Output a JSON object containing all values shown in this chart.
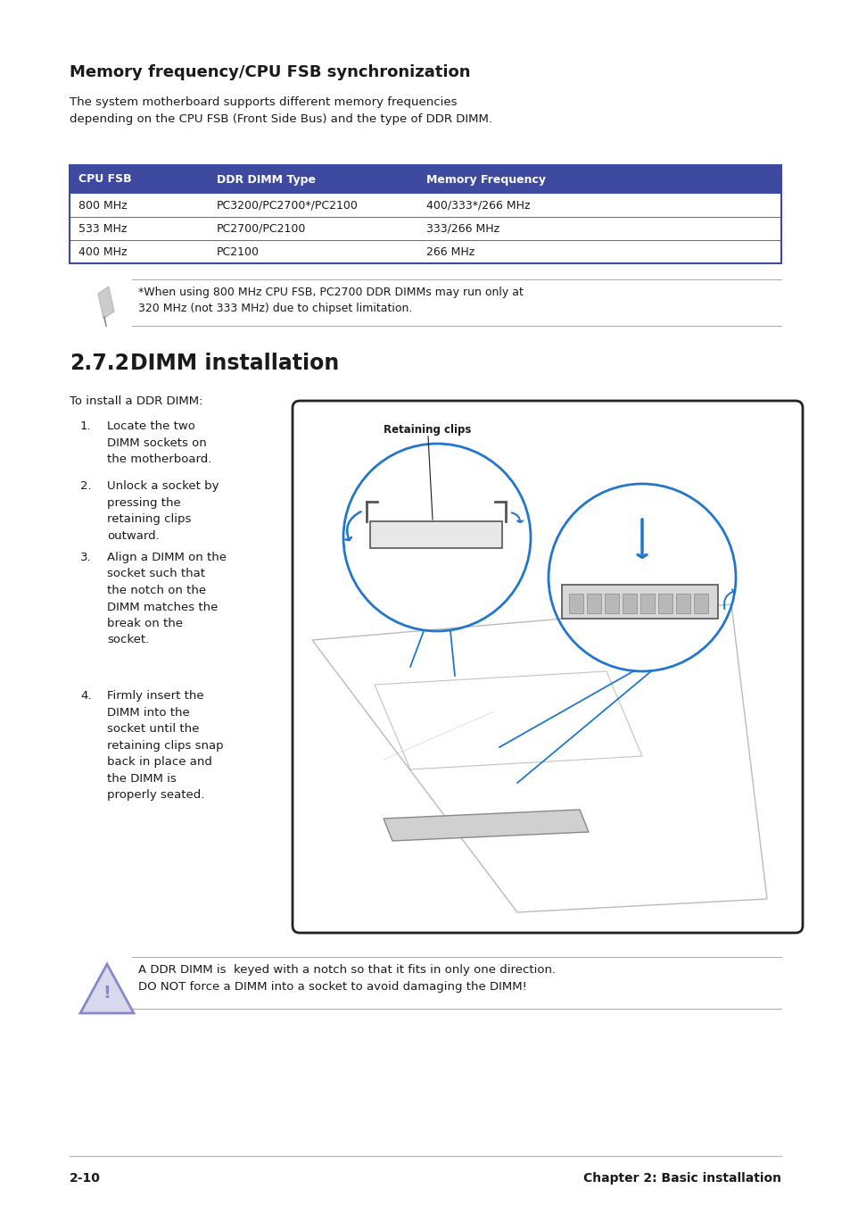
{
  "bg_color": "#ffffff",
  "section_title": "Memory frequency/CPU FSB synchronization",
  "section_desc": "The system motherboard supports different memory frequencies\ndepending on the CPU FSB (Front Side Bus) and the type of DDR DIMM.",
  "table_header": [
    "CPU FSB",
    "DDR DIMM Type",
    "Memory Frequency"
  ],
  "table_header_bg": "#3d4a9f",
  "table_header_color": "#ffffff",
  "table_rows": [
    [
      "800 MHz",
      "PC3200/PC2700*/PC2100",
      "400/333*/266 MHz"
    ],
    [
      "533 MHz",
      "PC2700/PC2100",
      "333/266 MHz"
    ],
    [
      "400 MHz",
      "PC2100",
      "266 MHz"
    ]
  ],
  "table_row_bg": [
    "#ffffff",
    "#ffffff",
    "#ffffff"
  ],
  "table_border_color": "#3d4a9f",
  "note1_text": "*When using 800 MHz CPU FSB, PC2700 DDR DIMMs may run only at\n320 MHz (not 333 MHz) due to chipset limitation.",
  "section2_num": "2.7.2",
  "section2_title": "DIMM installation",
  "install_intro": "To install a DDR DIMM:",
  "steps": [
    "Locate the two\nDIMM sockets on\nthe motherboard.",
    "Unlock a socket by\npressing the\nretaining clips\noutward.",
    "Align a DIMM on the\nsocket such that\nthe notch on the\nDIMM matches the\nbreak on the\nsocket.",
    "Firmly insert the\nDIMM into the\nsocket until the\nretaining clips snap\nback in place and\nthe DIMM is\nproperly seated."
  ],
  "retaining_clips_label": "Retaining clips",
  "caution_text": "A DDR DIMM is  keyed with a notch so that it fits in only one direction.\nDO NOT force a DIMM into a socket to avoid damaging the DIMM!",
  "footer_left": "2-10",
  "footer_right": "Chapter 2: Basic installation",
  "text_color": "#1a1a1a",
  "note_line_color": "#aaaaaa",
  "caution_icon_color": "#8888cc",
  "blue_arrow": "#2277cc",
  "diagram_border": "#222222",
  "diagram_bg": "#ffffff"
}
